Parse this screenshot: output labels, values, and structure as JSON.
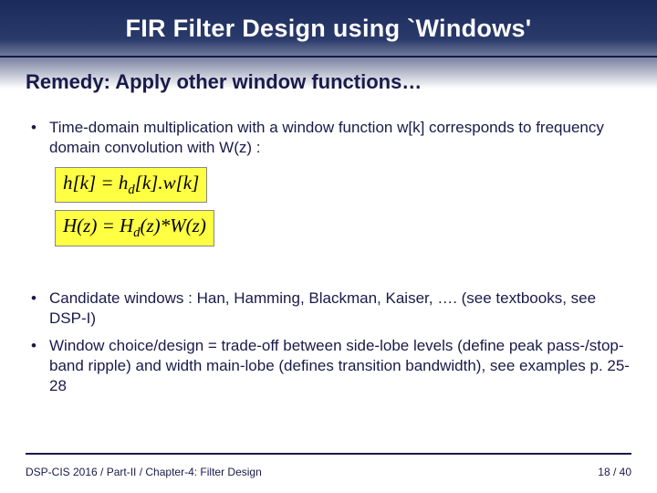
{
  "title": "FIR Filter Design using `Windows'",
  "subheading": "Remedy:  Apply other window functions…",
  "bullets": {
    "b1": "Time-domain multiplication with a window function w[k] corresponds to frequency domain convolution  with W(z) :",
    "b2": "Candidate windows : Han, Hamming, Blackman, Kaiser, …. (see textbooks, see DSP-I)",
    "b3": "Window choice/design = trade-off between side-lobe levels (define peak pass-/stop-band ripple) and width main-lobe (defines transition bandwidth), see examples p. 25-28"
  },
  "formulas": {
    "f1_html": "h[k] = h<sub>d</sub>[k].w[k]",
    "f2_html": "H(z) = H<sub>d</sub>(z)*W(z)"
  },
  "footer_left": "DSP-CIS 2016 / Part-II / Chapter-4: Filter Design",
  "footer_right": "18 / 40",
  "colors": {
    "title_color": "#ffffff",
    "text_color": "#1a1a4a",
    "formula_bg": "#ffff44",
    "gradient_top": "#1a2a5a",
    "gradient_mid": "#2a3a6a",
    "bg": "#ffffff"
  },
  "fonts": {
    "title_pt": 27,
    "subheading_pt": 22,
    "body_pt": 17,
    "footer_pt": 12,
    "formula_pt": 21
  }
}
